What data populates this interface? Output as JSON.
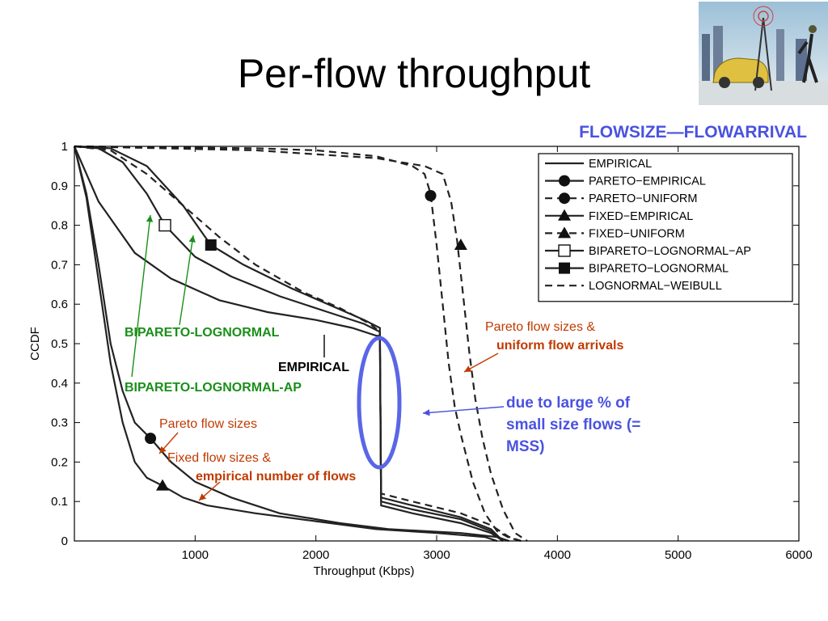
{
  "slide": {
    "title": "Per-flow throughput",
    "scenario": "FLOWSIZE—FLOWARRIVAL"
  },
  "annotations": {
    "bipareto_lognormal": "BIPARETO-LOGNORMAL",
    "empirical": "EMPIRICAL",
    "bipareto_lognormal_ap": "BIPARETO-LOGNORMAL-AP",
    "pareto_uniform_line1": "Pareto flow sizes &",
    "pareto_uniform_line2": "uniform flow arrivals",
    "due_line1": "due to large % of",
    "due_line2": "small size flows (=",
    "due_line3": "MSS)",
    "pareto_flow_sizes": "Pareto flow sizes",
    "fixed_line1": "Fixed flow sizes &",
    "fixed_line2": "empirical number of flows"
  },
  "colors": {
    "annotation_green": "#1a8f1a",
    "annotation_red": "#c03a00",
    "annotation_blue": "#4a52e0",
    "axes": "#000000"
  },
  "chart_data": {
    "type": "line",
    "xlabel": "Throughput (Kbps)",
    "ylabel": "CCDF",
    "xlim": [
      0,
      6000
    ],
    "ylim": [
      0,
      1
    ],
    "xticks": [
      1000,
      2000,
      3000,
      4000,
      5000,
      6000
    ],
    "yticks": [
      0,
      0.1,
      0.2,
      0.3,
      0.4,
      0.5,
      0.6,
      0.7,
      0.8,
      0.9,
      1
    ],
    "legend_position": "top-right",
    "grid": false,
    "series": [
      {
        "name": "EMPIRICAL",
        "style": "solid",
        "marker": "none",
        "points": [
          [
            0,
            1
          ],
          [
            200,
            0.86
          ],
          [
            500,
            0.73
          ],
          [
            800,
            0.665
          ],
          [
            1200,
            0.61
          ],
          [
            1600,
            0.58
          ],
          [
            2000,
            0.56
          ],
          [
            2300,
            0.54
          ],
          [
            2500,
            0.52
          ],
          [
            2530,
            0.52
          ],
          [
            2540,
            0.09
          ],
          [
            2800,
            0.07
          ],
          [
            3200,
            0.045
          ],
          [
            3450,
            0.02
          ],
          [
            3550,
            0
          ]
        ]
      },
      {
        "name": "PARETO−EMPIRICAL",
        "style": "solid",
        "marker": "circle",
        "points": [
          [
            0,
            1
          ],
          [
            100,
            0.88
          ],
          [
            200,
            0.7
          ],
          [
            300,
            0.5
          ],
          [
            400,
            0.38
          ],
          [
            500,
            0.3
          ],
          [
            630,
            0.26
          ],
          [
            800,
            0.2
          ],
          [
            1000,
            0.15
          ],
          [
            1300,
            0.11
          ],
          [
            1700,
            0.07
          ],
          [
            2200,
            0.045
          ],
          [
            2600,
            0.03
          ],
          [
            3200,
            0.02
          ],
          [
            3500,
            0.01
          ],
          [
            3600,
            0
          ]
        ],
        "marker_points": [
          [
            630,
            0.26
          ]
        ]
      },
      {
        "name": "PARETO−UNIFORM",
        "style": "dashed",
        "marker": "circle",
        "points": [
          [
            0,
            1
          ],
          [
            1500,
            0.995
          ],
          [
            2000,
            0.99
          ],
          [
            2500,
            0.975
          ],
          [
            2800,
            0.95
          ],
          [
            2900,
            0.93
          ],
          [
            2950,
            0.88
          ],
          [
            3000,
            0.75
          ],
          [
            3050,
            0.6
          ],
          [
            3100,
            0.45
          ],
          [
            3150,
            0.34
          ],
          [
            3200,
            0.27
          ],
          [
            3300,
            0.15
          ],
          [
            3400,
            0.07
          ],
          [
            3500,
            0.025
          ],
          [
            3600,
            0.008
          ],
          [
            3700,
            0
          ]
        ],
        "marker_points": [
          [
            2950,
            0.875
          ]
        ]
      },
      {
        "name": "FIXED−EMPIRICAL",
        "style": "solid",
        "marker": "triangle",
        "points": [
          [
            0,
            1
          ],
          [
            100,
            0.87
          ],
          [
            200,
            0.66
          ],
          [
            300,
            0.45
          ],
          [
            400,
            0.3
          ],
          [
            500,
            0.2
          ],
          [
            600,
            0.16
          ],
          [
            730,
            0.14
          ],
          [
            900,
            0.11
          ],
          [
            1100,
            0.09
          ],
          [
            1500,
            0.07
          ],
          [
            2000,
            0.05
          ],
          [
            2500,
            0.03
          ],
          [
            3000,
            0.02
          ],
          [
            3400,
            0.01
          ],
          [
            3500,
            0
          ]
        ],
        "marker_points": [
          [
            730,
            0.14
          ]
        ]
      },
      {
        "name": "FIXED−UNIFORM",
        "style": "dashed",
        "marker": "triangle",
        "points": [
          [
            0,
            1
          ],
          [
            1500,
            0.99
          ],
          [
            2000,
            0.98
          ],
          [
            2500,
            0.97
          ],
          [
            2900,
            0.95
          ],
          [
            3050,
            0.93
          ],
          [
            3120,
            0.86
          ],
          [
            3170,
            0.76
          ],
          [
            3220,
            0.62
          ],
          [
            3270,
            0.48
          ],
          [
            3320,
            0.36
          ],
          [
            3380,
            0.26
          ],
          [
            3450,
            0.17
          ],
          [
            3550,
            0.08
          ],
          [
            3650,
            0.02
          ],
          [
            3750,
            0
          ]
        ],
        "marker_points": [
          [
            3200,
            0.75
          ]
        ]
      },
      {
        "name": "BIPARETO−LOGNORMAL−AP",
        "style": "solid",
        "marker": "square-open",
        "points": [
          [
            0,
            1
          ],
          [
            200,
            0.995
          ],
          [
            400,
            0.96
          ],
          [
            600,
            0.88
          ],
          [
            750,
            0.8
          ],
          [
            1000,
            0.72
          ],
          [
            1300,
            0.67
          ],
          [
            1700,
            0.62
          ],
          [
            2100,
            0.58
          ],
          [
            2400,
            0.55
          ],
          [
            2530,
            0.53
          ],
          [
            2540,
            0.11
          ],
          [
            2800,
            0.09
          ],
          [
            3200,
            0.06
          ],
          [
            3450,
            0.03
          ],
          [
            3550,
            0
          ]
        ],
        "marker_points": [
          [
            750,
            0.8
          ]
        ]
      },
      {
        "name": "BIPARETO−LOGNORMAL",
        "style": "solid",
        "marker": "square",
        "points": [
          [
            0,
            1
          ],
          [
            300,
            0.995
          ],
          [
            600,
            0.95
          ],
          [
            900,
            0.85
          ],
          [
            1130,
            0.75
          ],
          [
            1400,
            0.7
          ],
          [
            1800,
            0.64
          ],
          [
            2100,
            0.6
          ],
          [
            2400,
            0.56
          ],
          [
            2530,
            0.54
          ],
          [
            2540,
            0.1
          ],
          [
            2800,
            0.08
          ],
          [
            3200,
            0.055
          ],
          [
            3450,
            0.025
          ],
          [
            3550,
            0
          ]
        ],
        "marker_points": [
          [
            1130,
            0.75
          ]
        ]
      },
      {
        "name": "LOGNORMAL−WEIBULL",
        "style": "dashed",
        "marker": "none",
        "points": [
          [
            0,
            1
          ],
          [
            300,
            0.99
          ],
          [
            600,
            0.93
          ],
          [
            900,
            0.85
          ],
          [
            1200,
            0.77
          ],
          [
            1500,
            0.7
          ],
          [
            1900,
            0.63
          ],
          [
            2200,
            0.59
          ],
          [
            2450,
            0.55
          ],
          [
            2530,
            0.53
          ],
          [
            2540,
            0.12
          ],
          [
            2800,
            0.1
          ],
          [
            3200,
            0.07
          ],
          [
            3450,
            0.04
          ],
          [
            3600,
            0.01
          ],
          [
            3700,
            0
          ]
        ]
      }
    ]
  }
}
